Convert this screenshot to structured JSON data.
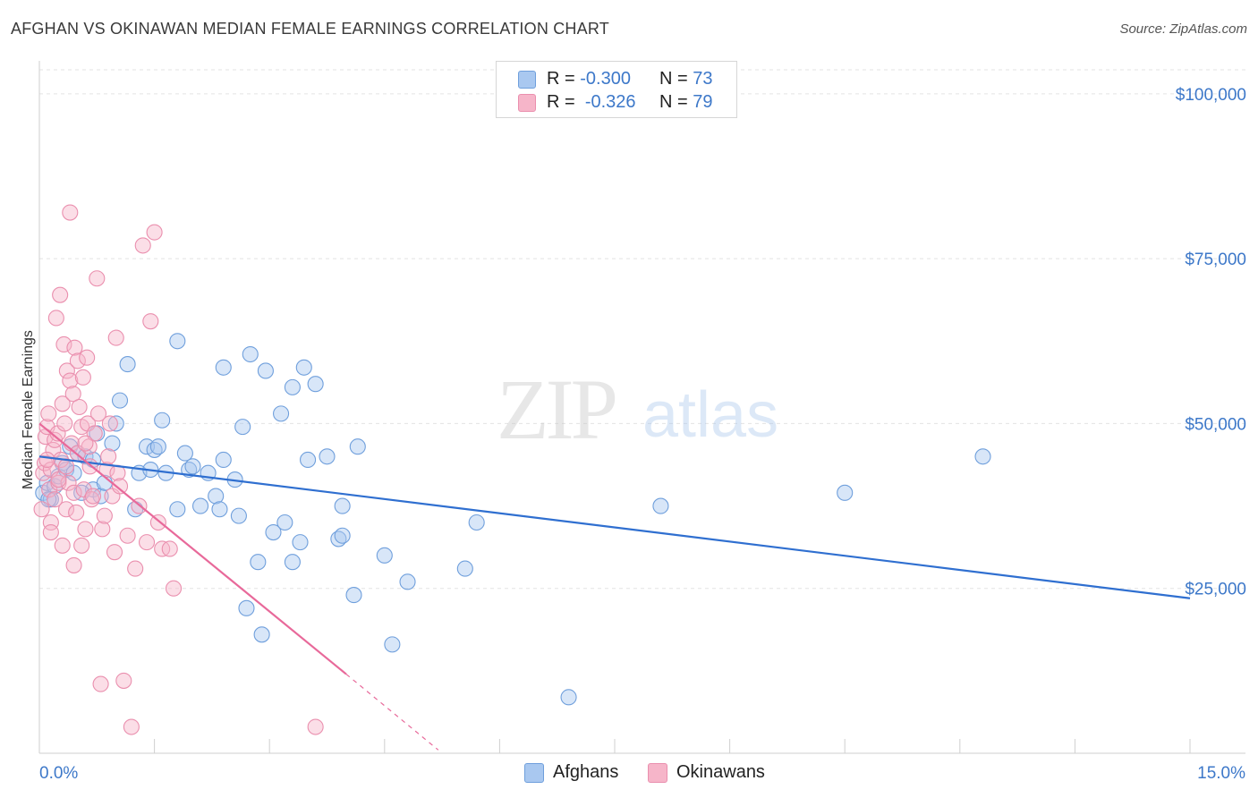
{
  "header": {
    "title": "AFGHAN VS OKINAWAN MEDIAN FEMALE EARNINGS CORRELATION CHART",
    "source": "Source: ZipAtlas.com"
  },
  "watermark": {
    "zip": "ZIP",
    "atlas": "atlas"
  },
  "legend": {
    "rows": [
      {
        "r_label": "R =",
        "r_value": "-0.300",
        "n_label": "N =",
        "n_value": "73",
        "color": "#a9c8f0"
      },
      {
        "r_label": "R =",
        "r_value": "-0.326",
        "n_label": "N =",
        "n_value": "79",
        "color": "#f6b5c9"
      }
    ]
  },
  "bottom_legend": [
    {
      "label": "Afghans",
      "color": "#a9c8f0"
    },
    {
      "label": "Okinawans",
      "color": "#f6b5c9"
    }
  ],
  "chart_data": {
    "type": "scatter",
    "xlabel": "",
    "ylabel": "Median Female Earnings",
    "xlim": [
      0,
      15
    ],
    "ylim": [
      0,
      105000
    ],
    "x_tick_labels": [
      "0.0%",
      "15.0%"
    ],
    "y_tick_values": [
      25000,
      50000,
      75000,
      100000
    ],
    "y_tick_labels": [
      "$25,000",
      "$50,000",
      "$75,000",
      "$100,000"
    ],
    "grid": true,
    "legend_position": "top-center",
    "series": [
      {
        "name": "Afghans",
        "color": "#a9c8f0",
        "stroke": "#6f9fdc",
        "trend_color": "#2f6fd0",
        "trend": {
          "x": [
            0.0,
            15.0
          ],
          "y": [
            45000,
            23500
          ]
        },
        "points": [
          [
            0.05,
            39500
          ],
          [
            0.1,
            41000
          ],
          [
            0.15,
            38500
          ],
          [
            0.2,
            40500
          ],
          [
            0.25,
            42000
          ],
          [
            0.3,
            44000
          ],
          [
            0.35,
            43000
          ],
          [
            0.4,
            46500
          ],
          [
            0.45,
            42500
          ],
          [
            0.5,
            45500
          ],
          [
            0.6,
            45000
          ],
          [
            0.7,
            44500
          ],
          [
            0.7,
            40000
          ],
          [
            0.8,
            39000
          ],
          [
            0.85,
            41000
          ],
          [
            0.95,
            47000
          ],
          [
            1.0,
            50000
          ],
          [
            1.05,
            53500
          ],
          [
            1.15,
            59000
          ],
          [
            1.25,
            37000
          ],
          [
            1.3,
            42500
          ],
          [
            1.4,
            46500
          ],
          [
            1.45,
            43000
          ],
          [
            1.5,
            46000
          ],
          [
            1.55,
            46500
          ],
          [
            1.6,
            50500
          ],
          [
            1.65,
            42500
          ],
          [
            1.8,
            62500
          ],
          [
            1.8,
            37000
          ],
          [
            1.9,
            45500
          ],
          [
            1.95,
            43000
          ],
          [
            2.0,
            43500
          ],
          [
            2.1,
            37500
          ],
          [
            2.2,
            42500
          ],
          [
            2.3,
            39000
          ],
          [
            2.35,
            37000
          ],
          [
            2.4,
            44500
          ],
          [
            2.4,
            58500
          ],
          [
            2.55,
            41500
          ],
          [
            2.6,
            36000
          ],
          [
            2.65,
            49500
          ],
          [
            2.7,
            22000
          ],
          [
            2.75,
            60500
          ],
          [
            2.85,
            29000
          ],
          [
            2.9,
            18000
          ],
          [
            2.95,
            58000
          ],
          [
            3.05,
            33500
          ],
          [
            3.15,
            51500
          ],
          [
            3.2,
            35000
          ],
          [
            3.3,
            29000
          ],
          [
            3.3,
            55500
          ],
          [
            3.4,
            32000
          ],
          [
            3.45,
            58500
          ],
          [
            3.5,
            44500
          ],
          [
            3.6,
            56000
          ],
          [
            3.75,
            45000
          ],
          [
            3.9,
            32500
          ],
          [
            3.95,
            37500
          ],
          [
            3.95,
            33000
          ],
          [
            4.1,
            24000
          ],
          [
            4.15,
            46500
          ],
          [
            4.5,
            30000
          ],
          [
            4.6,
            16500
          ],
          [
            4.8,
            26000
          ],
          [
            5.55,
            28000
          ],
          [
            5.7,
            35000
          ],
          [
            6.9,
            8500
          ],
          [
            8.1,
            37500
          ],
          [
            10.5,
            39500
          ],
          [
            12.3,
            45000
          ],
          [
            0.12,
            38500
          ],
          [
            0.55,
            39500
          ],
          [
            0.75,
            48500
          ]
        ]
      },
      {
        "name": "Okinawans",
        "color": "#f6b5c9",
        "stroke": "#ea8fae",
        "trend_color": "#e8699a",
        "trend": {
          "x": [
            0.0,
            4.0
          ],
          "y": [
            50000,
            12000
          ]
        },
        "trend_dashed": {
          "x": [
            4.0,
            5.2
          ],
          "y": [
            12000,
            500
          ]
        },
        "points": [
          [
            0.03,
            37000
          ],
          [
            0.05,
            42500
          ],
          [
            0.07,
            44000
          ],
          [
            0.08,
            48000
          ],
          [
            0.1,
            49500
          ],
          [
            0.12,
            51500
          ],
          [
            0.13,
            40000
          ],
          [
            0.15,
            43000
          ],
          [
            0.15,
            35000
          ],
          [
            0.18,
            46000
          ],
          [
            0.2,
            47500
          ],
          [
            0.2,
            38500
          ],
          [
            0.22,
            66000
          ],
          [
            0.24,
            48500
          ],
          [
            0.25,
            41000
          ],
          [
            0.27,
            69500
          ],
          [
            0.28,
            44500
          ],
          [
            0.3,
            53000
          ],
          [
            0.3,
            31500
          ],
          [
            0.32,
            62000
          ],
          [
            0.33,
            50000
          ],
          [
            0.35,
            43500
          ],
          [
            0.35,
            37000
          ],
          [
            0.36,
            58000
          ],
          [
            0.38,
            41000
          ],
          [
            0.4,
            82000
          ],
          [
            0.4,
            56500
          ],
          [
            0.42,
            47000
          ],
          [
            0.44,
            54500
          ],
          [
            0.45,
            39500
          ],
          [
            0.46,
            61500
          ],
          [
            0.48,
            36500
          ],
          [
            0.5,
            59500
          ],
          [
            0.5,
            45500
          ],
          [
            0.52,
            52500
          ],
          [
            0.55,
            49500
          ],
          [
            0.55,
            31500
          ],
          [
            0.57,
            57000
          ],
          [
            0.58,
            40000
          ],
          [
            0.6,
            34000
          ],
          [
            0.62,
            60000
          ],
          [
            0.63,
            50000
          ],
          [
            0.65,
            46500
          ],
          [
            0.66,
            43500
          ],
          [
            0.68,
            38500
          ],
          [
            0.7,
            39000
          ],
          [
            0.72,
            48500
          ],
          [
            0.75,
            72000
          ],
          [
            0.77,
            51500
          ],
          [
            0.8,
            10500
          ],
          [
            0.82,
            34000
          ],
          [
            0.85,
            36000
          ],
          [
            0.88,
            43000
          ],
          [
            0.9,
            45000
          ],
          [
            0.92,
            50000
          ],
          [
            0.95,
            39000
          ],
          [
            0.98,
            30500
          ],
          [
            1.0,
            63000
          ],
          [
            1.02,
            42500
          ],
          [
            1.05,
            40500
          ],
          [
            1.1,
            11000
          ],
          [
            1.15,
            33000
          ],
          [
            1.2,
            4000
          ],
          [
            1.25,
            28000
          ],
          [
            1.3,
            37500
          ],
          [
            1.35,
            77000
          ],
          [
            1.4,
            32000
          ],
          [
            1.45,
            65500
          ],
          [
            1.5,
            79000
          ],
          [
            1.55,
            35000
          ],
          [
            1.6,
            31000
          ],
          [
            1.7,
            31000
          ],
          [
            1.75,
            25000
          ],
          [
            3.6,
            4000
          ],
          [
            0.1,
            44500
          ],
          [
            0.45,
            28500
          ],
          [
            0.6,
            47000
          ],
          [
            0.15,
            33500
          ],
          [
            0.25,
            41500
          ]
        ]
      }
    ]
  }
}
